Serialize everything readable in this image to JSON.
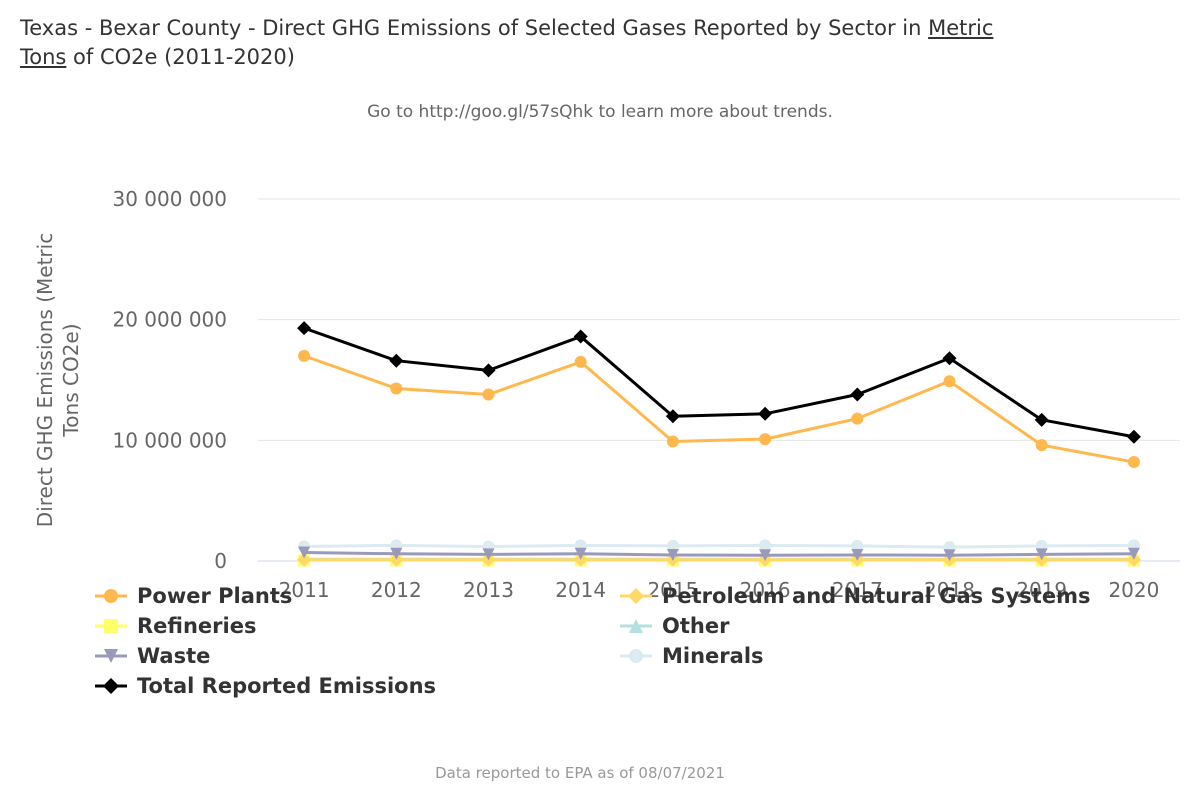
{
  "header": {
    "title_prefix": "Texas - Bexar County - Direct GHG Emissions of Selected Gases Reported by Sector in ",
    "title_link_1": "Metric",
    "title_link_2": "Tons",
    "title_suffix": " of CO2e (2011-2020)",
    "subtitle": "Go to http://goo.gl/57sQhk to learn more about trends."
  },
  "footer": {
    "credit": "Data reported to EPA as of 08/07/2021"
  },
  "chart_data": {
    "type": "line",
    "title": "Texas - Bexar County - Direct GHG Emissions of Selected Gases Reported by Sector in Metric Tons of CO2e (2011-2020)",
    "subtitle": "Go to http://goo.gl/57sQhk to learn more about trends.",
    "xlabel": "",
    "ylabel": "Direct GHG Emissions (Metric Tons CO2e)",
    "x": [
      "2011",
      "2012",
      "2013",
      "2014",
      "2015",
      "2016",
      "2017",
      "2018",
      "2019",
      "2020"
    ],
    "ylim": [
      0,
      30000000
    ],
    "yticks": [
      0,
      10000000,
      20000000,
      30000000
    ],
    "ytick_labels": [
      "0",
      "10 000 000",
      "20 000 000",
      "30 000 000"
    ],
    "grid": true,
    "legend_position": "bottom-left",
    "series": [
      {
        "name": "Power Plants",
        "color": "#FFB84D",
        "marker": "circle",
        "values": [
          17000000,
          14300000,
          13800000,
          16500000,
          9900000,
          10100000,
          11800000,
          14900000,
          9600000,
          8200000
        ]
      },
      {
        "name": "Petroleum and Natural Gas Systems",
        "color": "#FFD966",
        "marker": "diamond",
        "values": [
          100000,
          100000,
          100000,
          100000,
          100000,
          100000,
          100000,
          100000,
          100000,
          100000
        ]
      },
      {
        "name": "Refineries",
        "color": "#FFFF66",
        "marker": "square",
        "values": [
          50000,
          50000,
          50000,
          50000,
          50000,
          50000,
          50000,
          50000,
          50000,
          50000
        ]
      },
      {
        "name": "Other",
        "color": "#B3E0E0",
        "marker": "triangle",
        "values": [
          150000,
          150000,
          150000,
          150000,
          150000,
          150000,
          150000,
          150000,
          150000,
          150000
        ]
      },
      {
        "name": "Waste",
        "color": "#9999BB",
        "marker": "triangle-down",
        "values": [
          700000,
          600000,
          550000,
          600000,
          500000,
          480000,
          500000,
          480000,
          550000,
          600000
        ]
      },
      {
        "name": "Minerals",
        "color": "#DCEBF2",
        "marker": "circle",
        "values": [
          1200000,
          1300000,
          1200000,
          1300000,
          1250000,
          1300000,
          1250000,
          1150000,
          1250000,
          1300000
        ]
      },
      {
        "name": "Total Reported Emissions",
        "color": "#000000",
        "marker": "diamond",
        "values": [
          19300000,
          16600000,
          15800000,
          18600000,
          12000000,
          12200000,
          13800000,
          16800000,
          11700000,
          10300000
        ]
      }
    ]
  }
}
